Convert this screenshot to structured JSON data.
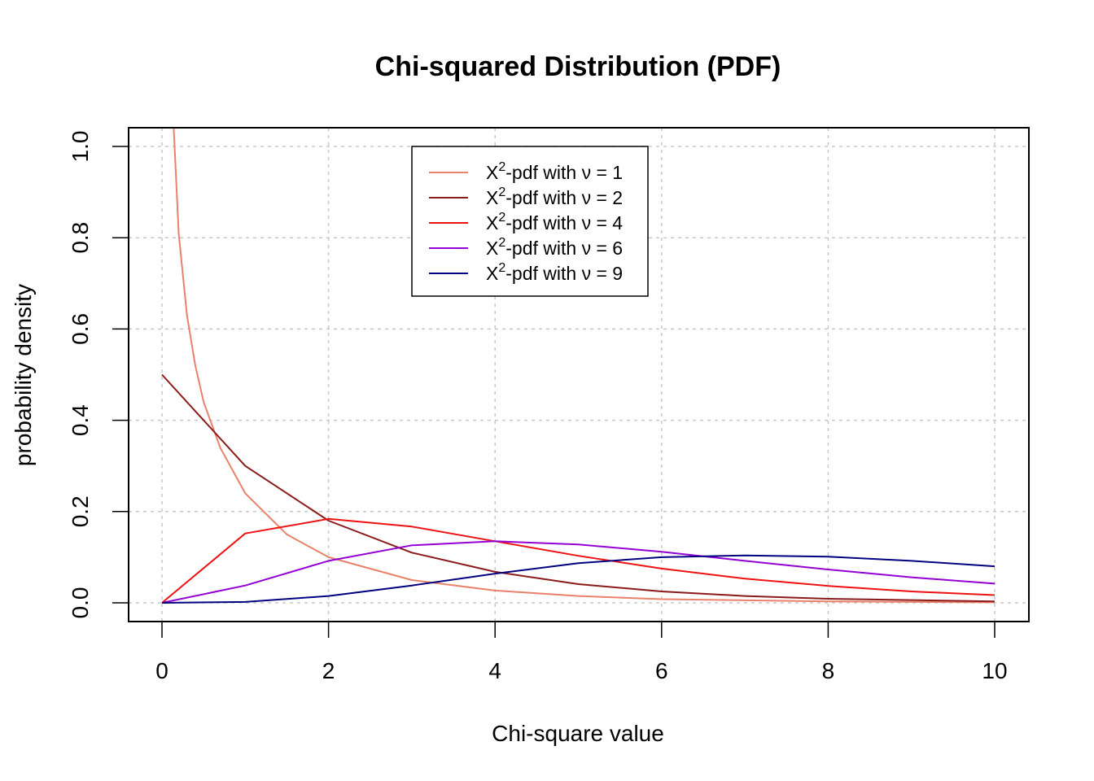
{
  "chart_data": {
    "type": "line",
    "title": "Chi-squared Distribution (PDF)",
    "xlabel": "Chi-square value",
    "ylabel": "probability density",
    "xlim": [
      0,
      10
    ],
    "ylim": [
      0,
      1
    ],
    "x_ticks": [
      "0",
      "2",
      "4",
      "6",
      "8",
      "10"
    ],
    "y_ticks": [
      "0.0",
      "0.2",
      "0.4",
      "0.6",
      "0.8",
      "1.0"
    ],
    "grid": true,
    "legend_position": "top-center",
    "series": [
      {
        "name": "X-pdf with ν = 1",
        "legend_prefix": "X",
        "legend_sup": "2",
        "legend_suffix": "-pdf with ν = 1",
        "df": 1,
        "color": "#E9826A",
        "x": [
          0.1,
          0.2,
          0.3,
          0.4,
          0.5,
          0.7,
          1.0,
          1.5,
          2.0,
          3.0,
          4.0,
          5.0,
          6.0,
          8.0,
          10.0
        ],
        "y": [
          1.2,
          0.81,
          0.63,
          0.52,
          0.44,
          0.34,
          0.24,
          0.15,
          0.1,
          0.05,
          0.027,
          0.015,
          0.008,
          0.003,
          0.001
        ]
      },
      {
        "name": "X-pdf with ν = 2",
        "legend_prefix": "X",
        "legend_sup": "2",
        "legend_suffix": "-pdf with ν = 2",
        "df": 2,
        "color": "#8B1A1A",
        "x": [
          0,
          1,
          2,
          3,
          4,
          5,
          6,
          7,
          8,
          9,
          10
        ],
        "y": [
          0.5,
          0.3,
          0.18,
          0.11,
          0.068,
          0.041,
          0.025,
          0.015,
          0.009,
          0.006,
          0.003
        ]
      },
      {
        "name": "X-pdf with ν = 4",
        "legend_prefix": "X",
        "legend_sup": "2",
        "legend_suffix": "-pdf with ν = 4",
        "df": 4,
        "color": "#EE1111",
        "x": [
          0,
          1,
          2,
          3,
          4,
          5,
          6,
          7,
          8,
          9,
          10
        ],
        "y": [
          0,
          0.152,
          0.184,
          0.167,
          0.135,
          0.103,
          0.075,
          0.053,
          0.037,
          0.025,
          0.017
        ]
      },
      {
        "name": "X-pdf with ν = 6",
        "legend_prefix": "X",
        "legend_sup": "2",
        "legend_suffix": "-pdf with ν = 6",
        "df": 6,
        "color": "#9400D3",
        "x": [
          0,
          1,
          2,
          3,
          4,
          5,
          6,
          7,
          8,
          9,
          10
        ],
        "y": [
          0,
          0.038,
          0.092,
          0.126,
          0.135,
          0.128,
          0.112,
          0.092,
          0.073,
          0.056,
          0.042
        ]
      },
      {
        "name": "X-pdf with ν = 9",
        "legend_prefix": "X",
        "legend_sup": "2",
        "legend_suffix": "-pdf with ν = 9",
        "df": 9,
        "color": "#000080",
        "x": [
          0,
          1,
          2,
          3,
          4,
          5,
          6,
          7,
          8,
          9,
          10
        ],
        "y": [
          0,
          0.002,
          0.015,
          0.038,
          0.064,
          0.087,
          0.1,
          0.104,
          0.101,
          0.092,
          0.08
        ]
      }
    ]
  }
}
